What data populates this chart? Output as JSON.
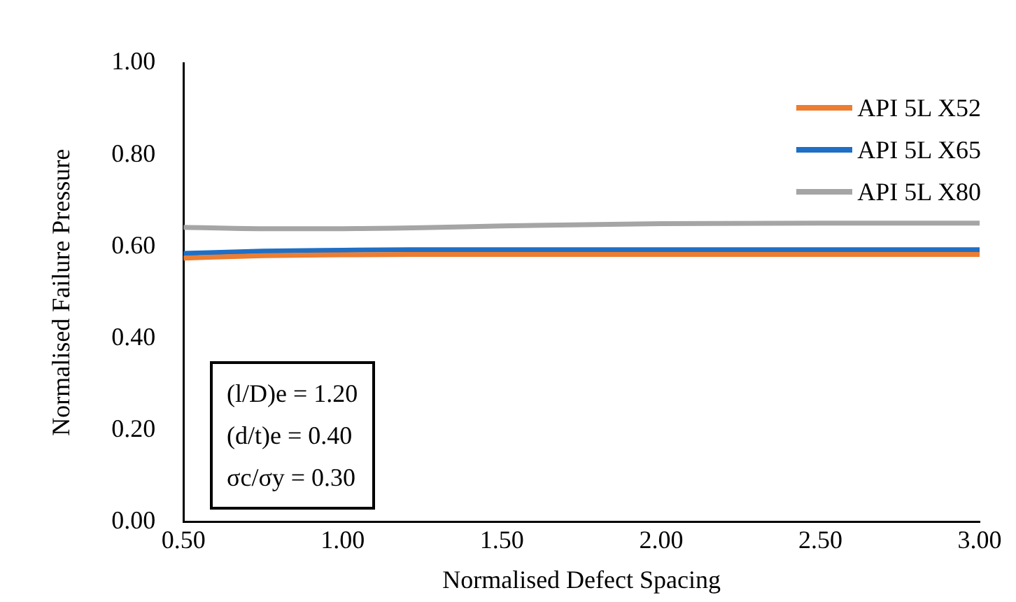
{
  "chart_data": {
    "type": "line",
    "xlabel": "Normalised Defect Spacing",
    "ylabel": "Normalised Failure Pressure",
    "x": [
      0.5,
      0.75,
      1.0,
      1.25,
      1.5,
      2.0,
      2.5,
      3.0
    ],
    "series": [
      {
        "name": "API 5L X52",
        "color": "#ed7d31",
        "values": [
          0.575,
          0.58,
          0.582,
          0.583,
          0.583,
          0.583,
          0.583,
          0.583
        ]
      },
      {
        "name": "API 5L X65",
        "color": "#1f6fc5",
        "values": [
          0.585,
          0.59,
          0.592,
          0.593,
          0.593,
          0.593,
          0.593,
          0.593
        ]
      },
      {
        "name": "API 5L X80",
        "color": "#a5a5a5",
        "values": [
          0.642,
          0.639,
          0.639,
          0.641,
          0.645,
          0.65,
          0.651,
          0.651
        ]
      }
    ],
    "xlim": [
      0.5,
      3.0
    ],
    "xticks": [
      {
        "value": 0.5,
        "label": "0.50"
      },
      {
        "value": 1.0,
        "label": "1.00"
      },
      {
        "value": 1.5,
        "label": "1.50"
      },
      {
        "value": 2.0,
        "label": "2.00"
      },
      {
        "value": 2.5,
        "label": "2.50"
      },
      {
        "value": 3.0,
        "label": "3.00"
      }
    ],
    "ylim": [
      0,
      1
    ],
    "yticks": [
      {
        "value": 0,
        "label": "0.00"
      },
      {
        "value": 0.2,
        "label": "0.20"
      },
      {
        "value": 0.4,
        "label": "0.40"
      },
      {
        "value": 0.6,
        "label": "0.60"
      },
      {
        "value": 0.8,
        "label": "0.80"
      },
      {
        "value": 1.0,
        "label": "1.00"
      }
    ],
    "grid": false,
    "legend": "top right",
    "marker": "none",
    "line_style": "solid",
    "annotations": [
      "(l/D)e = 1.20",
      "(d/t)e = 0.40",
      "σc/σy = 0.30"
    ]
  }
}
